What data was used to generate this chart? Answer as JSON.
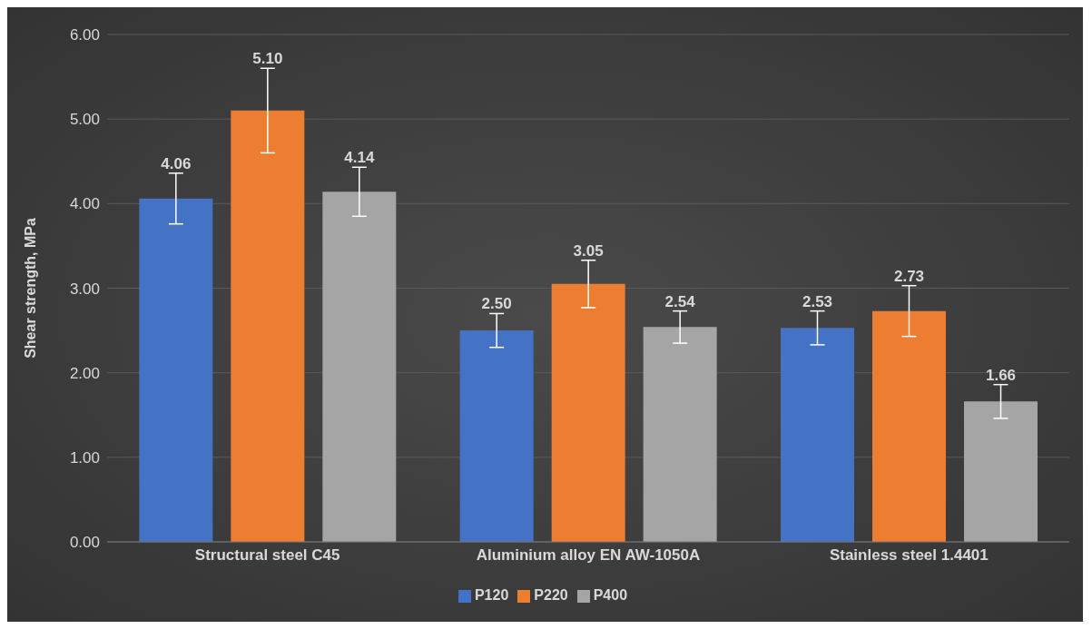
{
  "chart_data": {
    "type": "bar",
    "ylabel": "Shear strength, MPa",
    "categories": [
      "Structural steel C45",
      "Aluminium alloy EN AW-1050A",
      "Stainless steel 1.4401"
    ],
    "series": [
      {
        "name": "P120",
        "color": "#4472c4",
        "values": [
          4.06,
          2.5,
          2.53
        ],
        "errors": [
          0.3,
          0.2,
          0.2
        ],
        "value_labels": [
          "4.06",
          "2.50",
          "2.53"
        ]
      },
      {
        "name": "P220",
        "color": "#ed7d31",
        "values": [
          5.1,
          3.05,
          2.73
        ],
        "errors": [
          0.5,
          0.28,
          0.3
        ],
        "value_labels": [
          "5.10",
          "3.05",
          "2.73"
        ]
      },
      {
        "name": "P400",
        "color": "#a5a5a5",
        "values": [
          4.14,
          2.54,
          1.66
        ],
        "errors": [
          0.29,
          0.19,
          0.2
        ],
        "value_labels": [
          "4.14",
          "2.54",
          "1.66"
        ]
      }
    ],
    "ylim": [
      0,
      6
    ],
    "yticks": [
      {
        "value": 0,
        "label": "0.00"
      },
      {
        "value": 1,
        "label": "1.00"
      },
      {
        "value": 2,
        "label": "2.00"
      },
      {
        "value": 3,
        "label": "3.00"
      },
      {
        "value": 4,
        "label": "4.00"
      },
      {
        "value": 5,
        "label": "5.00"
      },
      {
        "value": 6,
        "label": "6.00"
      }
    ],
    "grid": "y",
    "legend": "bottom"
  }
}
